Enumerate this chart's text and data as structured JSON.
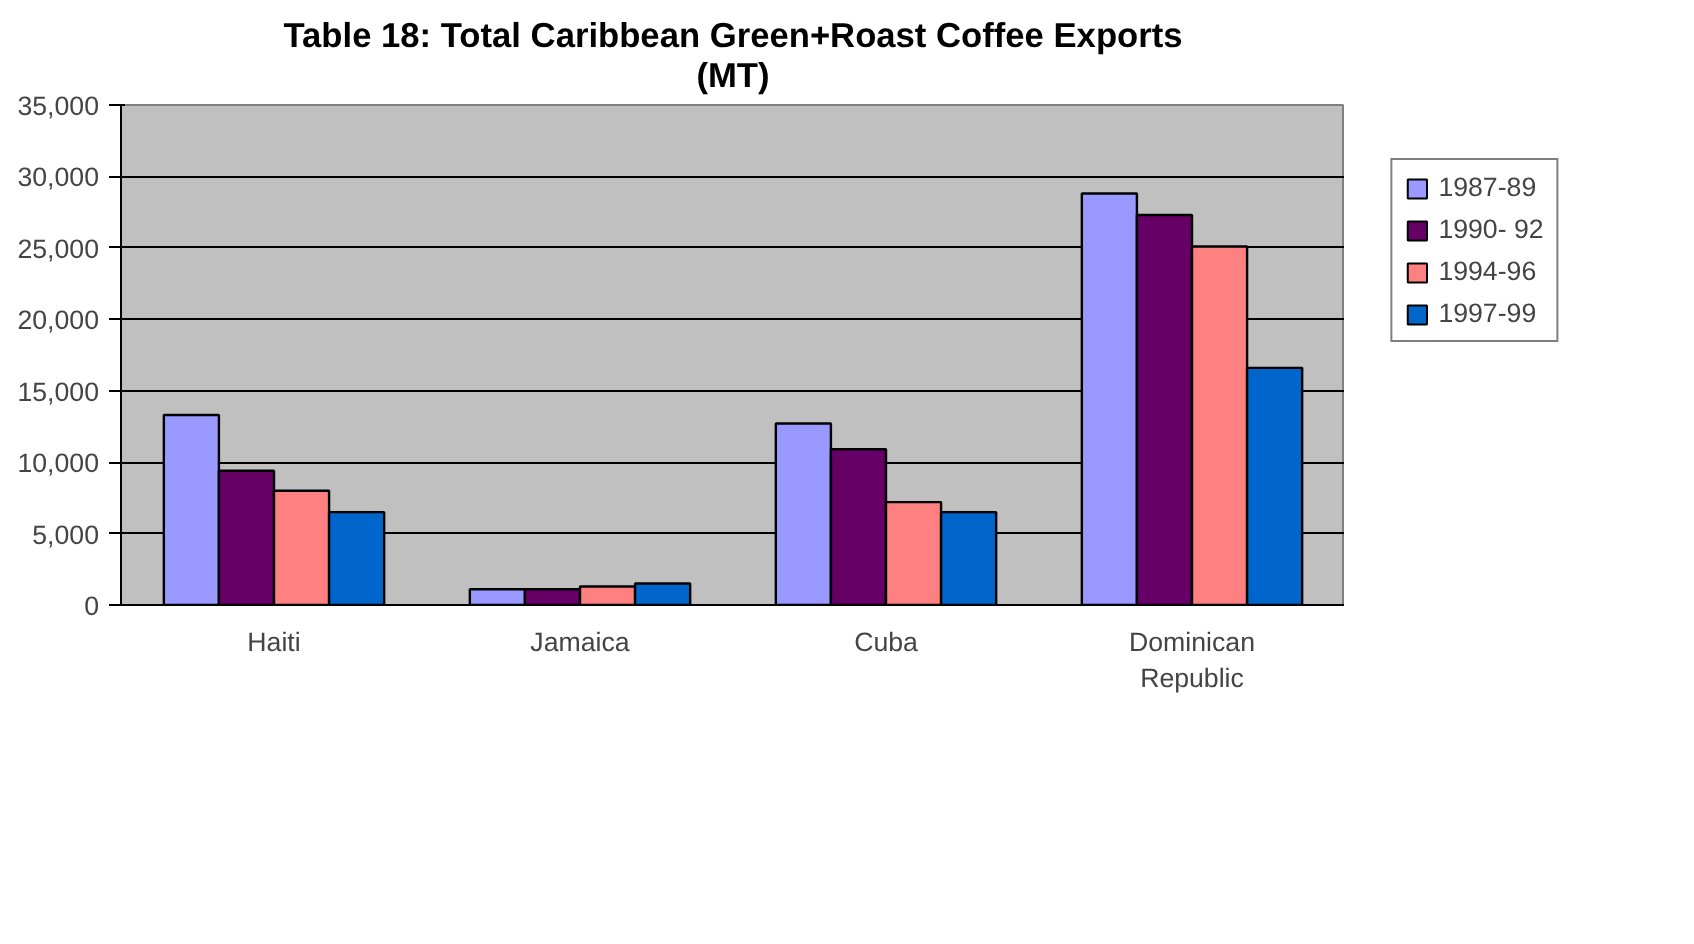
{
  "chart_data": {
    "type": "bar",
    "title": "Table 18: Total Caribbean Green+Roast Coffee Exports\n(MT)",
    "categories": [
      "Haiti",
      "Jamaica",
      "Cuba",
      "Dominican\nRepublic"
    ],
    "series": [
      {
        "name": "1987-89",
        "color": "#9999ff",
        "values": [
          13300,
          1100,
          12700,
          28800
        ]
      },
      {
        "name": "1990- 92",
        "color": "#660066",
        "values": [
          9400,
          1100,
          10900,
          27300
        ]
      },
      {
        "name": "1994-96",
        "color": "#ff8080",
        "values": [
          8000,
          1300,
          7200,
          25100
        ]
      },
      {
        "name": "1997-99",
        "color": "#0066cc",
        "values": [
          6500,
          1500,
          6500,
          16600
        ]
      }
    ],
    "ylim": [
      0,
      35000
    ],
    "yticks": [
      {
        "value": 0,
        "label": "0"
      },
      {
        "value": 5000,
        "label": "5,000"
      },
      {
        "value": 10000,
        "label": "10,000"
      },
      {
        "value": 15000,
        "label": "15,000"
      },
      {
        "value": 20000,
        "label": "20,000"
      },
      {
        "value": 25000,
        "label": "25,000"
      },
      {
        "value": 30000,
        "label": "30,000"
      },
      {
        "value": 35000,
        "label": "35,000"
      }
    ],
    "grid": "y",
    "legend": "right"
  }
}
